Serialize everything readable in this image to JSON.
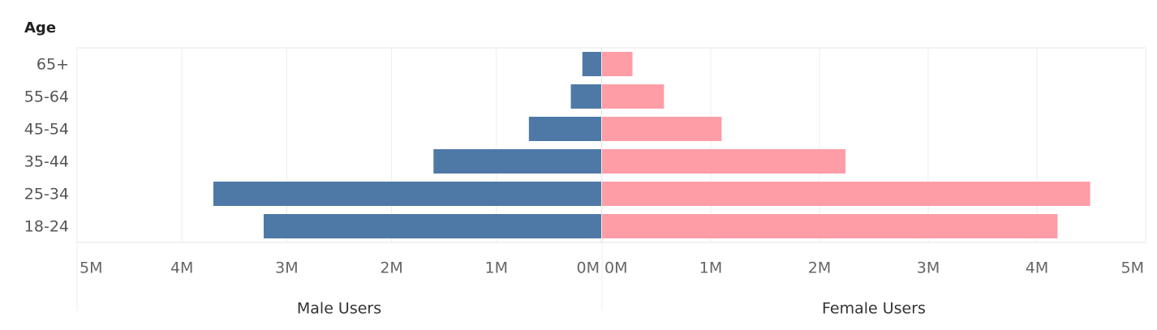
{
  "chart_data": {
    "type": "pyramid",
    "y_label": "Age",
    "categories": [
      "65+",
      "55-64",
      "45-54",
      "35-44",
      "25-34",
      "18-24"
    ],
    "series": [
      {
        "name": "Male Users",
        "color": "#4e79a7",
        "values": [
          180000,
          290000,
          690000,
          1600000,
          3700000,
          3220000
        ],
        "xlim": [
          5000000,
          0
        ],
        "xticks": [
          {
            "value": 5000000,
            "label": "5M"
          },
          {
            "value": 4000000,
            "label": "4M"
          },
          {
            "value": 3000000,
            "label": "3M"
          },
          {
            "value": 2000000,
            "label": "2M"
          },
          {
            "value": 1000000,
            "label": "1M"
          },
          {
            "value": 0,
            "label": "0M"
          }
        ]
      },
      {
        "name": "Female Users",
        "color": "#ff9da7",
        "values": [
          280000,
          570000,
          1100000,
          2240000,
          4490000,
          4190000
        ],
        "xlim": [
          0,
          5000000
        ],
        "xticks": [
          {
            "value": 0,
            "label": "0M"
          },
          {
            "value": 1000000,
            "label": "1M"
          },
          {
            "value": 2000000,
            "label": "2M"
          },
          {
            "value": 3000000,
            "label": "3M"
          },
          {
            "value": 4000000,
            "label": "4M"
          },
          {
            "value": 5000000,
            "label": "5M"
          }
        ]
      }
    ],
    "grid": true
  }
}
